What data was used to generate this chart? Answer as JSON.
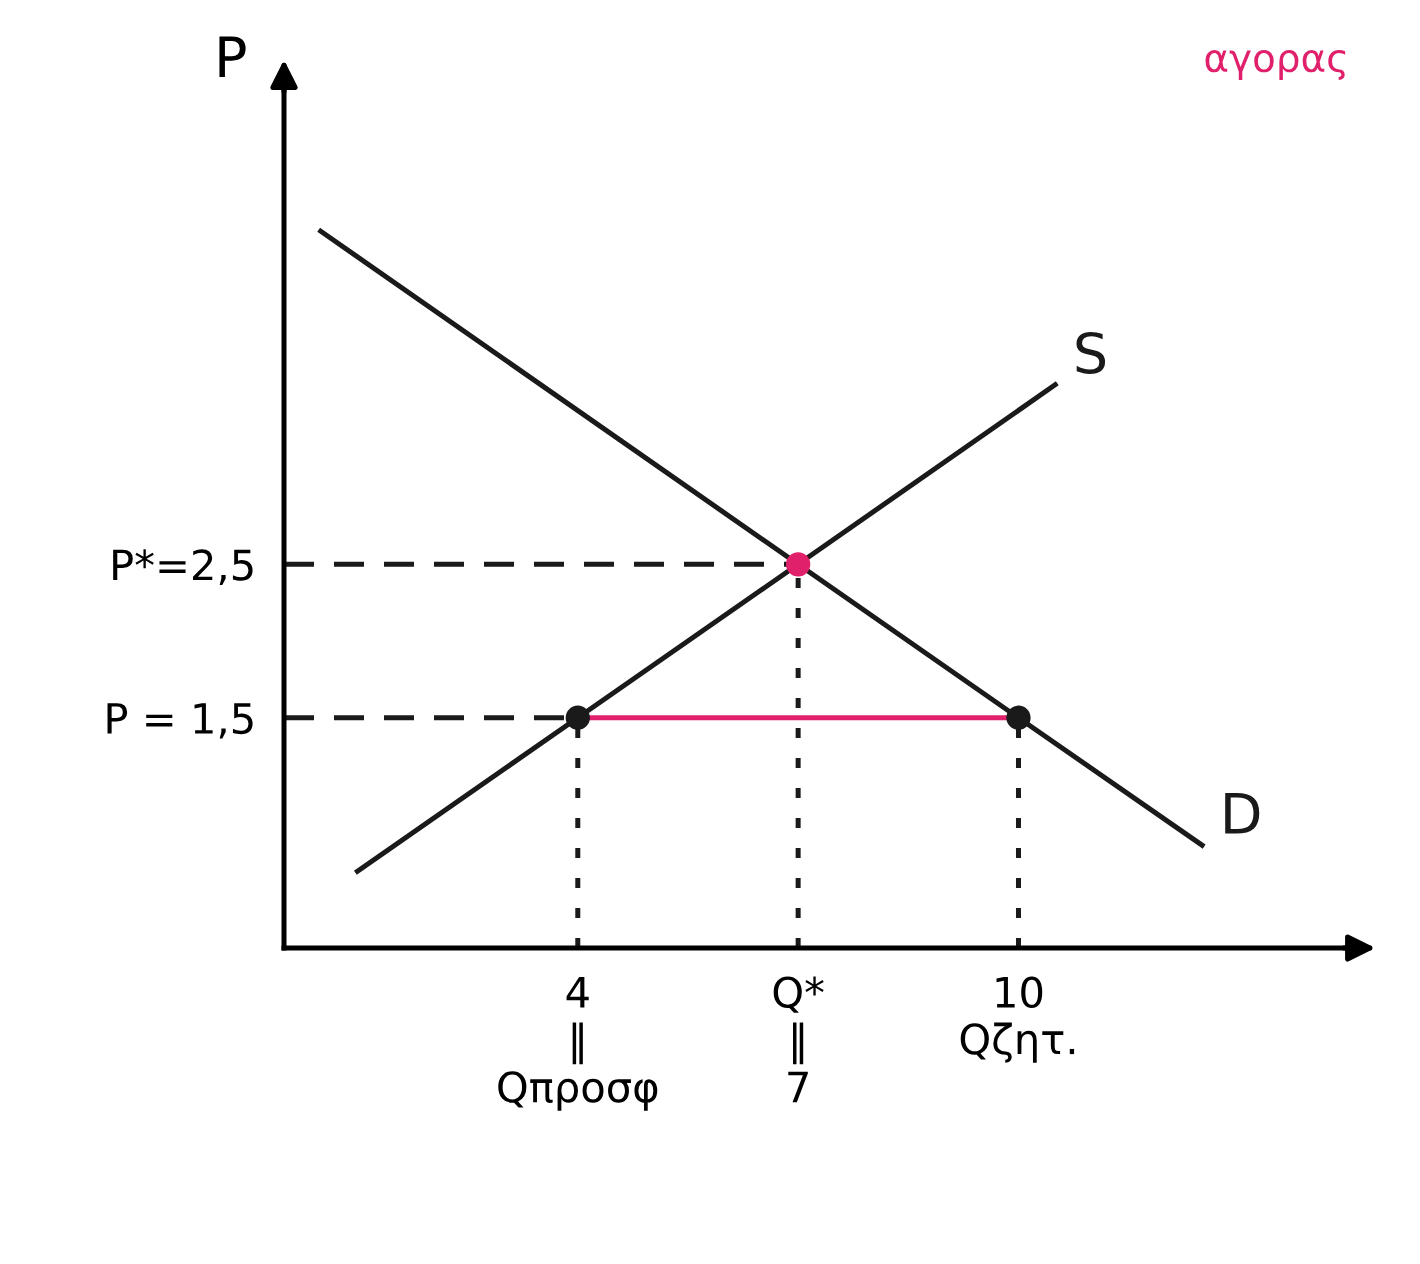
{
  "chart_data": {
    "type": "line",
    "title": "αγορας",
    "ylabel": "P",
    "xlim": [
      0,
      14.5
    ],
    "ylim": [
      0,
      5.6
    ],
    "xticks": [
      {
        "value": 4,
        "label": "4\n‖\nQπροσφ"
      },
      {
        "value": 7,
        "label": "Q*\n‖\n7"
      },
      {
        "value": 10,
        "label": "10\nQζητ."
      }
    ],
    "yticks": [
      {
        "value": 1.5,
        "label": "P = 1,5"
      },
      {
        "value": 2.5,
        "label": "P*=2,5"
      }
    ],
    "grid": false,
    "legend": false,
    "series": [
      {
        "name": "S",
        "color": "#1a1a1a",
        "x": [
          1,
          4,
          7,
          10.5
        ],
        "values": [
          0.5,
          1.5,
          2.5,
          3.67
        ]
      },
      {
        "name": "D",
        "color": "#1a1a1a",
        "x": [
          0.5,
          7,
          10,
          12.5
        ],
        "values": [
          4.67,
          2.5,
          1.5,
          0.67
        ]
      },
      {
        "type": "line",
        "color": "#1a1a1a",
        "line_style": "dashed",
        "x": [
          0,
          7
        ],
        "values": [
          2.5,
          2.5
        ]
      },
      {
        "type": "line",
        "color": "#1a1a1a",
        "line_style": "dashed",
        "x": [
          0,
          4
        ],
        "values": [
          1.5,
          1.5
        ]
      },
      {
        "type": "line",
        "color": "#1a1a1a",
        "line_style": "dotted",
        "x": [
          4,
          4
        ],
        "values": [
          0,
          1.5
        ]
      },
      {
        "type": "line",
        "color": "#1a1a1a",
        "line_style": "dotted",
        "x": [
          7,
          7
        ],
        "values": [
          0,
          2.5
        ]
      },
      {
        "type": "line",
        "color": "#1a1a1a",
        "line_style": "dotted",
        "x": [
          10,
          10
        ],
        "values": [
          0,
          1.5
        ]
      },
      {
        "color": "#e0206a",
        "x": [
          4,
          10
        ],
        "values": [
          1.5,
          1.5
        ]
      },
      {
        "type": "scatter",
        "color": "#1a1a1a",
        "marker": "circle",
        "x": [
          4,
          10
        ],
        "values": [
          1.5,
          1.5
        ]
      },
      {
        "type": "scatter",
        "color": "#e0206a",
        "marker": "circle",
        "x": [
          7
        ],
        "values": [
          2.5
        ]
      }
    ]
  }
}
